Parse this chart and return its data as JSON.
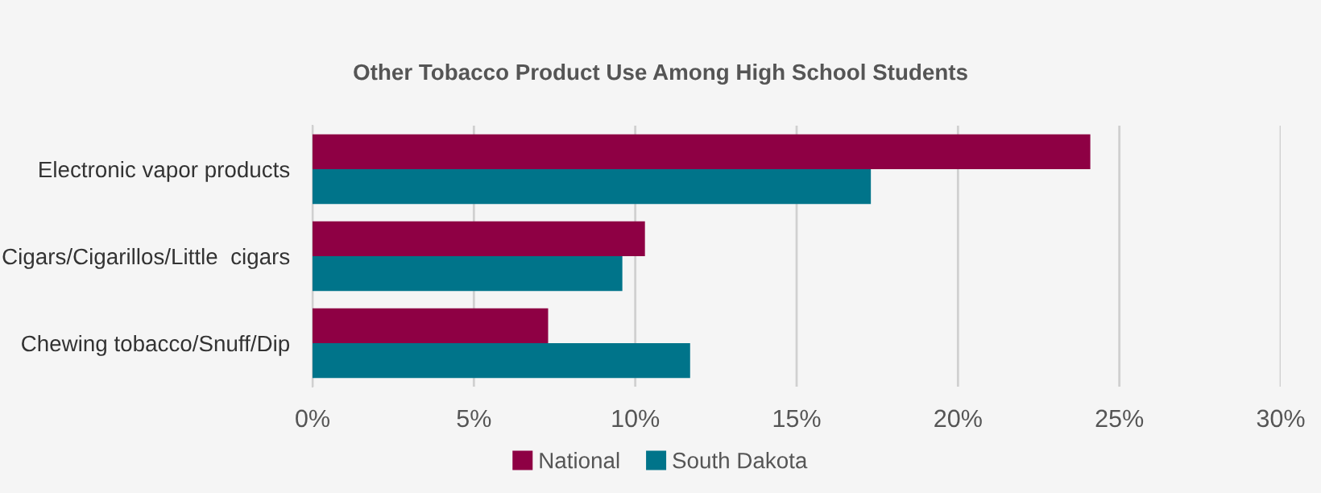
{
  "chart_data": {
    "type": "bar",
    "orientation": "horizontal",
    "title": "Other Tobacco Product Use Among High School Students",
    "categories": [
      "Electronic vapor products",
      "Cigars/Cigarillos/Little  cigars",
      "Chewing tobacco/Snuff/Dip"
    ],
    "series": [
      {
        "name": "National",
        "color": "#8e0044",
        "values": [
          24.1,
          10.3,
          7.3
        ]
      },
      {
        "name": "South Dakota",
        "color": "#00748a",
        "values": [
          17.3,
          9.6,
          11.7
        ]
      }
    ],
    "xlim": [
      0,
      30
    ],
    "xticks": [
      {
        "value": 0,
        "label": "0%"
      },
      {
        "value": 5,
        "label": "5%"
      },
      {
        "value": 10,
        "label": "10%"
      },
      {
        "value": 15,
        "label": "15%"
      },
      {
        "value": 20,
        "label": "20%"
      },
      {
        "value": 25,
        "label": "25%"
      },
      {
        "value": 30,
        "label": "30%"
      }
    ],
    "grid": "x",
    "legend": "bottom"
  }
}
